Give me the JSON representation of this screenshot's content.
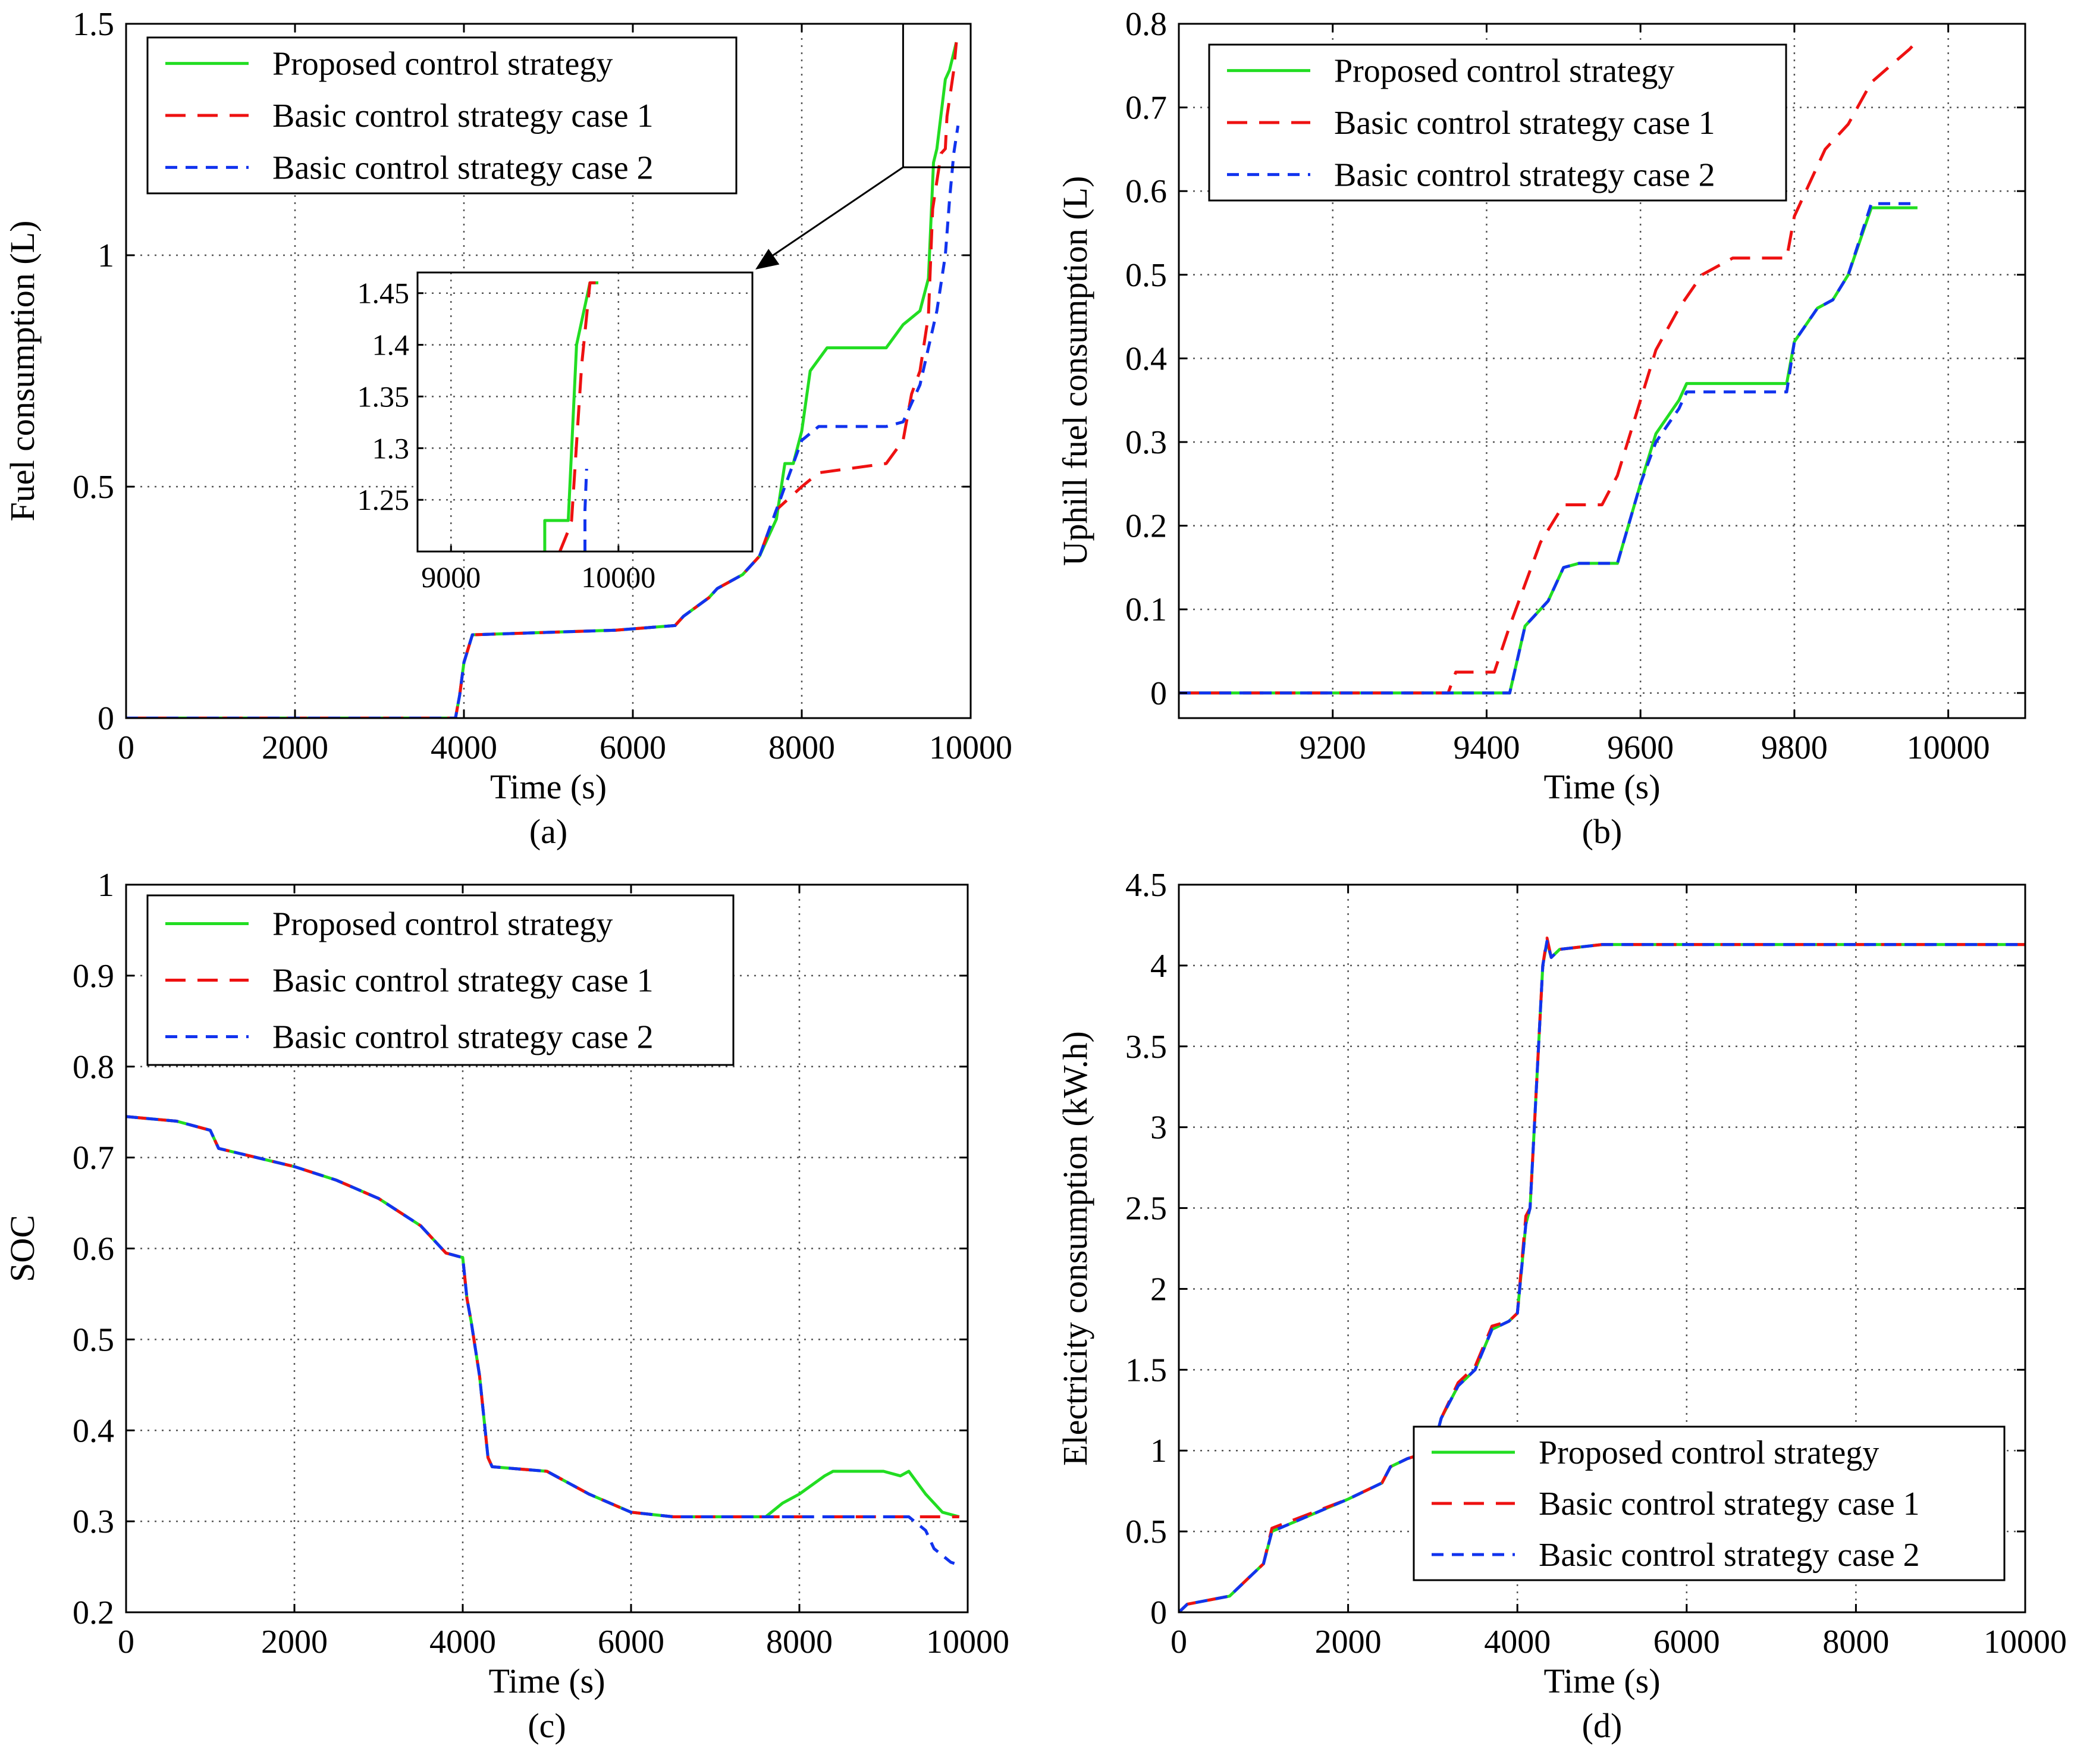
{
  "colors": {
    "proposed": "#22dd22",
    "case1": "#ee1111",
    "case2": "#1133ee"
  },
  "legend_labels": [
    "Proposed control strategy",
    "Basic control strategy case 1",
    "Basic control strategy case 2"
  ],
  "chart_data": [
    {
      "id": "a",
      "type": "line",
      "caption": "(a)",
      "xlabel": "Time (s)",
      "ylabel": "Fuel consumption (L)",
      "xlim": [
        0,
        10000
      ],
      "ylim": [
        0,
        1.5
      ],
      "xticks": [
        0,
        2000,
        4000,
        6000,
        8000,
        10000
      ],
      "xtick_labels": [
        "0",
        "2000",
        "4000",
        "6000",
        "8000",
        "10000"
      ],
      "yticks": [
        0,
        0.5,
        1,
        1.5
      ],
      "ytick_labels": [
        "0",
        "0.5",
        "1",
        "1.5"
      ],
      "legend_position": "top-left",
      "series": [
        {
          "name": "Proposed control strategy",
          "key": "proposed",
          "dash": "solid",
          "x": [
            0,
            3900,
            3950,
            4000,
            4100,
            5800,
            6500,
            6600,
            6900,
            7000,
            7300,
            7500,
            7700,
            7800,
            7900,
            8000,
            8100,
            8300,
            9000,
            9200,
            9400,
            9500,
            9560,
            9600,
            9700,
            9750,
            9830
          ],
          "y": [
            0,
            0,
            0.05,
            0.12,
            0.18,
            0.19,
            0.2,
            0.22,
            0.26,
            0.28,
            0.31,
            0.35,
            0.43,
            0.55,
            0.55,
            0.62,
            0.75,
            0.8,
            0.8,
            0.85,
            0.88,
            0.95,
            1.2,
            1.23,
            1.38,
            1.4,
            1.46
          ]
        },
        {
          "name": "Basic control strategy case 1",
          "key": "case1",
          "dash": "long",
          "x": [
            0,
            3900,
            3950,
            4000,
            4100,
            5800,
            6500,
            6600,
            6900,
            7000,
            7300,
            7500,
            7700,
            8000,
            8200,
            9000,
            9200,
            9300,
            9400,
            9500,
            9550,
            9650,
            9700,
            9720,
            9800,
            9830
          ],
          "y": [
            0,
            0,
            0.05,
            0.12,
            0.18,
            0.19,
            0.2,
            0.22,
            0.26,
            0.28,
            0.31,
            0.35,
            0.45,
            0.5,
            0.53,
            0.55,
            0.6,
            0.7,
            0.75,
            0.87,
            1.1,
            1.22,
            1.23,
            1.3,
            1.4,
            1.46
          ]
        },
        {
          "name": "Basic control strategy case 2",
          "key": "case2",
          "dash": "short",
          "x": [
            0,
            3900,
            3950,
            4000,
            4100,
            5800,
            6500,
            6600,
            6900,
            7000,
            7300,
            7500,
            7700,
            7800,
            8000,
            8200,
            9000,
            9200,
            9350,
            9400,
            9500,
            9600,
            9700,
            9750,
            9800,
            9850
          ],
          "y": [
            0,
            0,
            0.05,
            0.12,
            0.18,
            0.19,
            0.2,
            0.22,
            0.26,
            0.28,
            0.31,
            0.35,
            0.45,
            0.5,
            0.6,
            0.63,
            0.63,
            0.64,
            0.7,
            0.72,
            0.8,
            0.88,
            1.0,
            1.12,
            1.22,
            1.28
          ]
        }
      ],
      "inset": {
        "xlim": [
          8800,
          10800
        ],
        "ylim": [
          1.2,
          1.47
        ],
        "xticks": [
          9000,
          10000
        ],
        "xtick_labels": [
          "9000",
          "10000"
        ],
        "yticks": [
          1.25,
          1.3,
          1.35,
          1.4,
          1.45
        ],
        "ytick_labels": [
          "1.25",
          "1.3",
          "1.35",
          "1.4",
          "1.45"
        ],
        "zoom_box": {
          "x": [
            9200,
            10000
          ],
          "y": [
            1.19,
            1.5
          ]
        },
        "series": [
          {
            "key": "proposed",
            "dash": "solid",
            "x": [
              9560,
              9560,
              9700,
              9750,
              9830,
              9880
            ],
            "y": [
              1.2,
              1.23,
              1.23,
              1.4,
              1.46,
              1.46
            ]
          },
          {
            "key": "case1",
            "dash": "long",
            "x": [
              9650,
              9700,
              9720,
              9780,
              9830,
              9870
            ],
            "y": [
              1.2,
              1.22,
              1.23,
              1.38,
              1.46,
              1.46
            ]
          },
          {
            "key": "case2",
            "dash": "short",
            "x": [
              9800,
              9800,
              9810
            ],
            "y": [
              1.2,
              1.24,
              1.28
            ]
          }
        ]
      }
    },
    {
      "id": "b",
      "type": "line",
      "caption": "(b)",
      "xlabel": "Time (s)",
      "ylabel": "Uphill fuel consumption (L)",
      "xlim": [
        9000,
        10100
      ],
      "ylim": [
        -0.03,
        0.8
      ],
      "xticks": [
        9200,
        9400,
        9600,
        9800,
        10000
      ],
      "xtick_labels": [
        "9200",
        "9400",
        "9600",
        "9800",
        "10000"
      ],
      "yticks": [
        0,
        0.1,
        0.2,
        0.3,
        0.4,
        0.5,
        0.6,
        0.7,
        0.8
      ],
      "ytick_labels": [
        "0",
        "0.1",
        "0.2",
        "0.3",
        "0.4",
        "0.5",
        "0.6",
        "0.7",
        "0.8"
      ],
      "legend_position": "top-left",
      "series": [
        {
          "name": "Proposed control strategy",
          "key": "proposed",
          "dash": "solid",
          "x": [
            9000,
            9430,
            9450,
            9480,
            9500,
            9520,
            9570,
            9600,
            9620,
            9650,
            9660,
            9690,
            9790,
            9800,
            9830,
            9850,
            9870,
            9900,
            9960
          ],
          "y": [
            0,
            0,
            0.08,
            0.11,
            0.15,
            0.155,
            0.155,
            0.25,
            0.31,
            0.35,
            0.37,
            0.37,
            0.37,
            0.42,
            0.46,
            0.47,
            0.5,
            0.58,
            0.58
          ]
        },
        {
          "name": "Basic control strategy case 1",
          "key": "case1",
          "dash": "long",
          "x": [
            9000,
            9350,
            9360,
            9410,
            9430,
            9470,
            9500,
            9550,
            9570,
            9600,
            9620,
            9650,
            9680,
            9720,
            9790,
            9800,
            9820,
            9840,
            9870,
            9900,
            9950,
            9960
          ],
          "y": [
            0,
            0,
            0.025,
            0.025,
            0.08,
            0.18,
            0.225,
            0.225,
            0.26,
            0.35,
            0.41,
            0.46,
            0.5,
            0.52,
            0.52,
            0.57,
            0.61,
            0.65,
            0.68,
            0.73,
            0.77,
            0.78
          ]
        },
        {
          "name": "Basic control strategy case 2",
          "key": "case2",
          "dash": "short",
          "x": [
            9000,
            9430,
            9450,
            9480,
            9500,
            9520,
            9570,
            9600,
            9620,
            9650,
            9660,
            9690,
            9790,
            9800,
            9830,
            9850,
            9870,
            9900,
            9960
          ],
          "y": [
            0,
            0,
            0.08,
            0.11,
            0.15,
            0.155,
            0.155,
            0.25,
            0.3,
            0.34,
            0.36,
            0.36,
            0.36,
            0.42,
            0.46,
            0.47,
            0.5,
            0.585,
            0.585
          ]
        }
      ]
    },
    {
      "id": "c",
      "type": "line",
      "caption": "(c)",
      "xlabel": "Time (s)",
      "ylabel": "SOC",
      "xlim": [
        0,
        10000
      ],
      "ylim": [
        0.2,
        1
      ],
      "xticks": [
        0,
        2000,
        4000,
        6000,
        8000,
        10000
      ],
      "xtick_labels": [
        "0",
        "2000",
        "4000",
        "6000",
        "8000",
        "10000"
      ],
      "yticks": [
        0.2,
        0.3,
        0.4,
        0.5,
        0.6,
        0.7,
        0.8,
        0.9,
        1
      ],
      "ytick_labels": [
        "0.2",
        "0.3",
        "0.4",
        "0.5",
        "0.6",
        "0.7",
        "0.8",
        "0.9",
        "1"
      ],
      "legend_position": "top-left",
      "series": [
        {
          "name": "Proposed control strategy",
          "key": "proposed",
          "dash": "solid",
          "x": [
            0,
            600,
            1000,
            1100,
            2000,
            2500,
            3000,
            3500,
            3800,
            4000,
            4050,
            4100,
            4200,
            4300,
            4350,
            5000,
            5500,
            6000,
            6500,
            7000,
            7600,
            7800,
            8000,
            8300,
            8400,
            9000,
            9200,
            9300,
            9500,
            9700,
            9900
          ],
          "y": [
            0.745,
            0.74,
            0.73,
            0.71,
            0.69,
            0.675,
            0.655,
            0.625,
            0.595,
            0.59,
            0.545,
            0.52,
            0.46,
            0.37,
            0.36,
            0.355,
            0.33,
            0.31,
            0.305,
            0.305,
            0.305,
            0.32,
            0.33,
            0.35,
            0.355,
            0.355,
            0.35,
            0.355,
            0.33,
            0.31,
            0.305
          ]
        },
        {
          "name": "Basic control strategy case 1",
          "key": "case1",
          "dash": "long",
          "x": [
            0,
            600,
            1000,
            1100,
            2000,
            2500,
            3000,
            3500,
            3800,
            4000,
            4050,
            4100,
            4200,
            4300,
            4350,
            5000,
            5500,
            6000,
            6500,
            7000,
            8000,
            9000,
            9300,
            9500,
            9700,
            9900
          ],
          "y": [
            0.745,
            0.74,
            0.73,
            0.71,
            0.69,
            0.675,
            0.655,
            0.625,
            0.595,
            0.59,
            0.545,
            0.52,
            0.46,
            0.37,
            0.36,
            0.355,
            0.33,
            0.31,
            0.305,
            0.305,
            0.305,
            0.305,
            0.305,
            0.305,
            0.305,
            0.305
          ]
        },
        {
          "name": "Basic control strategy case 2",
          "key": "case2",
          "dash": "short",
          "x": [
            0,
            600,
            1000,
            1100,
            2000,
            2500,
            3000,
            3500,
            3800,
            4000,
            4050,
            4100,
            4200,
            4300,
            4350,
            5000,
            5500,
            6000,
            6500,
            7000,
            8000,
            9000,
            9300,
            9500,
            9600,
            9800,
            9900
          ],
          "y": [
            0.745,
            0.74,
            0.73,
            0.71,
            0.69,
            0.675,
            0.655,
            0.625,
            0.595,
            0.59,
            0.545,
            0.52,
            0.46,
            0.37,
            0.36,
            0.355,
            0.33,
            0.31,
            0.305,
            0.305,
            0.305,
            0.305,
            0.305,
            0.29,
            0.27,
            0.255,
            0.252
          ]
        }
      ]
    },
    {
      "id": "d",
      "type": "line",
      "caption": "(d)",
      "xlabel": "Time (s)",
      "ylabel": "Electricity consumption (kW.h)",
      "xlim": [
        0,
        10000
      ],
      "ylim": [
        0,
        4.5
      ],
      "xticks": [
        0,
        2000,
        4000,
        6000,
        8000,
        10000
      ],
      "xtick_labels": [
        "0",
        "2000",
        "4000",
        "6000",
        "8000",
        "10000"
      ],
      "yticks": [
        0,
        0.5,
        1,
        1.5,
        2,
        2.5,
        3,
        3.5,
        4,
        4.5
      ],
      "ytick_labels": [
        "0",
        "0.5",
        "1",
        "1.5",
        "2",
        "2.5",
        "3",
        "3.5",
        "4",
        "4.5"
      ],
      "legend_position": "bottom-right",
      "series": [
        {
          "name": "Proposed control strategy",
          "key": "proposed",
          "dash": "solid",
          "x": [
            0,
            100,
            600,
            800,
            1000,
            1100,
            2000,
            2400,
            2500,
            2700,
            3000,
            3100,
            3300,
            3500,
            3700,
            3900,
            4000,
            4100,
            4150,
            4200,
            4250,
            4300,
            4350,
            4400,
            4500,
            5000,
            6000,
            8000,
            10000
          ],
          "y": [
            0,
            0.05,
            0.1,
            0.2,
            0.3,
            0.5,
            0.7,
            0.8,
            0.9,
            0.95,
            1.0,
            1.2,
            1.4,
            1.5,
            1.75,
            1.8,
            1.85,
            2.4,
            2.5,
            3.0,
            3.5,
            4.0,
            4.15,
            4.05,
            4.1,
            4.13,
            4.13,
            4.13,
            4.13
          ]
        },
        {
          "name": "Basic control strategy case 1",
          "key": "case1",
          "dash": "long",
          "x": [
            0,
            100,
            600,
            800,
            1000,
            1100,
            2000,
            2400,
            2500,
            2700,
            3000,
            3100,
            3300,
            3500,
            3700,
            3900,
            4000,
            4100,
            4150,
            4200,
            4250,
            4300,
            4350,
            4400,
            4500,
            5000,
            6000,
            8000,
            10000
          ],
          "y": [
            0,
            0.05,
            0.1,
            0.2,
            0.3,
            0.52,
            0.7,
            0.8,
            0.9,
            0.95,
            1.0,
            1.2,
            1.42,
            1.52,
            1.77,
            1.8,
            1.85,
            2.45,
            2.5,
            3.0,
            3.5,
            4.0,
            4.17,
            4.05,
            4.1,
            4.13,
            4.13,
            4.13,
            4.13
          ]
        },
        {
          "name": "Basic control strategy case 2",
          "key": "case2",
          "dash": "short",
          "x": [
            0,
            100,
            600,
            800,
            1000,
            1100,
            2000,
            2400,
            2500,
            2700,
            3000,
            3100,
            3300,
            3500,
            3700,
            3900,
            4000,
            4100,
            4150,
            4200,
            4250,
            4300,
            4350,
            4400,
            4500,
            5000,
            6000,
            8000,
            10000
          ],
          "y": [
            0,
            0.05,
            0.1,
            0.2,
            0.3,
            0.5,
            0.7,
            0.8,
            0.9,
            0.95,
            1.0,
            1.2,
            1.4,
            1.5,
            1.75,
            1.8,
            1.85,
            2.4,
            2.5,
            3.0,
            3.5,
            4.0,
            4.15,
            4.05,
            4.1,
            4.13,
            4.13,
            4.13,
            4.13
          ]
        }
      ]
    }
  ]
}
